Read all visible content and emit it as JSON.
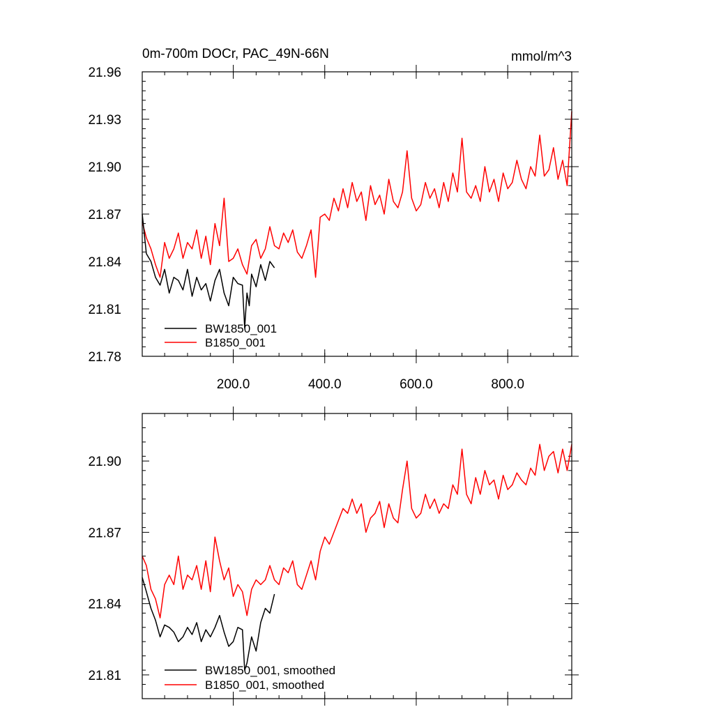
{
  "chart_data": [
    {
      "type": "line",
      "title": "0m-700m DOCr, PAC_49N-66N",
      "units": "mmol/m^3",
      "xlabel": "",
      "ylabel": "",
      "xlim": [
        1,
        940
      ],
      "ylim": [
        21.78,
        21.96
      ],
      "x_ticks": [
        200,
        400,
        600,
        800
      ],
      "x_tick_labels": [
        "200.0",
        "400.0",
        "600.0",
        "800.0"
      ],
      "y_ticks": [
        21.78,
        21.81,
        21.84,
        21.87,
        21.9,
        21.93,
        21.96
      ],
      "y_tick_labels": [
        "21.78",
        "21.81",
        "21.84",
        "21.87",
        "21.90",
        "21.93",
        "21.96"
      ],
      "grid": false,
      "legend_position": "bottom-left",
      "series": [
        {
          "name": "BW1850_001",
          "color": "#000000",
          "x": [
            1,
            10,
            20,
            30,
            40,
            50,
            60,
            70,
            80,
            90,
            100,
            110,
            120,
            130,
            140,
            150,
            160,
            170,
            180,
            190,
            200,
            210,
            220,
            225,
            230,
            235,
            240,
            250,
            260,
            270,
            280,
            290
          ],
          "y": [
            21.87,
            21.845,
            21.84,
            21.83,
            21.825,
            21.835,
            21.82,
            21.83,
            21.828,
            21.822,
            21.835,
            21.818,
            21.83,
            21.822,
            21.826,
            21.815,
            21.828,
            21.835,
            21.82,
            21.812,
            21.83,
            21.826,
            21.825,
            21.798,
            21.82,
            21.812,
            21.832,
            21.824,
            21.838,
            21.828,
            21.84,
            21.836
          ]
        },
        {
          "name": "B1850_001",
          "color": "#ff0000",
          "x": [
            1,
            10,
            20,
            30,
            40,
            50,
            60,
            70,
            80,
            90,
            100,
            110,
            120,
            130,
            140,
            150,
            160,
            170,
            180,
            190,
            200,
            210,
            220,
            230,
            240,
            250,
            260,
            270,
            280,
            290,
            300,
            310,
            320,
            330,
            340,
            350,
            360,
            370,
            380,
            390,
            400,
            410,
            420,
            430,
            440,
            450,
            460,
            470,
            480,
            490,
            500,
            510,
            520,
            530,
            540,
            550,
            560,
            570,
            580,
            590,
            600,
            610,
            620,
            630,
            640,
            650,
            660,
            670,
            680,
            690,
            700,
            710,
            720,
            730,
            740,
            750,
            760,
            770,
            780,
            790,
            800,
            810,
            820,
            830,
            840,
            850,
            860,
            870,
            880,
            890,
            900,
            910,
            920,
            930,
            940
          ],
          "y": [
            21.865,
            21.855,
            21.848,
            21.838,
            21.83,
            21.852,
            21.842,
            21.848,
            21.858,
            21.842,
            21.852,
            21.848,
            21.86,
            21.842,
            21.856,
            21.838,
            21.864,
            21.85,
            21.88,
            21.84,
            21.842,
            21.848,
            21.838,
            21.832,
            21.85,
            21.854,
            21.842,
            21.848,
            21.862,
            21.85,
            21.848,
            21.858,
            21.852,
            21.86,
            21.846,
            21.842,
            21.85,
            21.86,
            21.83,
            21.868,
            21.87,
            21.866,
            21.88,
            21.872,
            21.886,
            21.874,
            21.89,
            21.878,
            21.884,
            21.866,
            21.888,
            21.876,
            21.882,
            21.87,
            21.892,
            21.878,
            21.874,
            21.884,
            21.91,
            21.88,
            21.872,
            21.876,
            21.89,
            21.88,
            21.886,
            21.874,
            21.89,
            21.878,
            21.896,
            21.884,
            21.918,
            21.884,
            21.88,
            21.888,
            21.878,
            21.9,
            21.884,
            21.892,
            21.878,
            21.896,
            21.886,
            21.89,
            21.904,
            21.892,
            21.886,
            21.9,
            21.894,
            21.92,
            21.894,
            21.898,
            21.912,
            21.892,
            21.904,
            21.888,
            21.935
          ]
        }
      ]
    },
    {
      "type": "line",
      "title": "",
      "xlabel": "",
      "ylabel": "",
      "xlim": [
        1,
        940
      ],
      "ylim": [
        21.8,
        21.92
      ],
      "x_ticks": [
        200,
        400,
        600,
        800
      ],
      "x_tick_labels": [],
      "y_ticks": [
        21.81,
        21.84,
        21.87,
        21.9
      ],
      "y_tick_labels": [
        "21.81",
        "21.84",
        "21.87",
        "21.90"
      ],
      "grid": false,
      "legend_position": "bottom-left",
      "series": [
        {
          "name": "BW1850_001, smoothed",
          "color": "#000000",
          "x": [
            1,
            10,
            20,
            30,
            40,
            50,
            60,
            70,
            80,
            90,
            100,
            110,
            120,
            130,
            140,
            150,
            160,
            170,
            180,
            190,
            200,
            210,
            220,
            225,
            230,
            240,
            250,
            260,
            270,
            280,
            290
          ],
          "y": [
            21.851,
            21.845,
            21.838,
            21.833,
            21.826,
            21.831,
            21.83,
            21.828,
            21.824,
            21.826,
            21.83,
            21.827,
            21.832,
            21.824,
            21.829,
            21.826,
            21.83,
            21.835,
            21.828,
            21.822,
            21.824,
            21.83,
            21.829,
            21.812,
            21.815,
            21.826,
            21.82,
            21.832,
            21.838,
            21.836,
            21.844
          ]
        },
        {
          "name": "B1850_001, smoothed",
          "color": "#ff0000",
          "x": [
            1,
            10,
            20,
            30,
            40,
            50,
            60,
            70,
            80,
            90,
            100,
            110,
            120,
            130,
            140,
            150,
            160,
            170,
            180,
            190,
            200,
            210,
            220,
            230,
            240,
            250,
            260,
            270,
            280,
            290,
            300,
            310,
            320,
            330,
            340,
            350,
            360,
            370,
            380,
            390,
            400,
            410,
            420,
            430,
            440,
            450,
            460,
            470,
            480,
            490,
            500,
            510,
            520,
            530,
            540,
            550,
            560,
            570,
            580,
            590,
            600,
            610,
            620,
            630,
            640,
            650,
            660,
            670,
            680,
            690,
            700,
            710,
            720,
            730,
            740,
            750,
            760,
            770,
            780,
            790,
            800,
            810,
            820,
            830,
            840,
            850,
            860,
            870,
            880,
            890,
            900,
            910,
            920,
            930,
            940
          ],
          "y": [
            21.86,
            21.856,
            21.846,
            21.842,
            21.834,
            21.848,
            21.852,
            21.848,
            21.86,
            21.846,
            21.852,
            21.85,
            21.856,
            21.846,
            21.858,
            21.845,
            21.868,
            21.858,
            21.85,
            21.855,
            21.843,
            21.848,
            21.845,
            21.835,
            21.846,
            21.85,
            21.848,
            21.85,
            21.856,
            21.85,
            21.848,
            21.855,
            21.853,
            21.858,
            21.848,
            21.846,
            21.852,
            21.858,
            21.85,
            21.862,
            21.868,
            21.865,
            21.87,
            21.875,
            21.88,
            21.878,
            21.884,
            21.878,
            21.882,
            21.87,
            21.876,
            21.878,
            21.883,
            21.872,
            21.882,
            21.876,
            21.874,
            21.888,
            21.9,
            21.88,
            21.876,
            21.878,
            21.886,
            21.88,
            21.884,
            21.878,
            21.882,
            21.88,
            21.89,
            21.886,
            21.905,
            21.886,
            21.882,
            21.893,
            21.886,
            21.896,
            21.89,
            21.892,
            21.884,
            21.894,
            21.888,
            21.89,
            21.895,
            21.892,
            21.89,
            21.897,
            21.894,
            21.907,
            21.896,
            21.902,
            21.904,
            21.895,
            21.905,
            21.896,
            21.907
          ]
        }
      ]
    }
  ]
}
